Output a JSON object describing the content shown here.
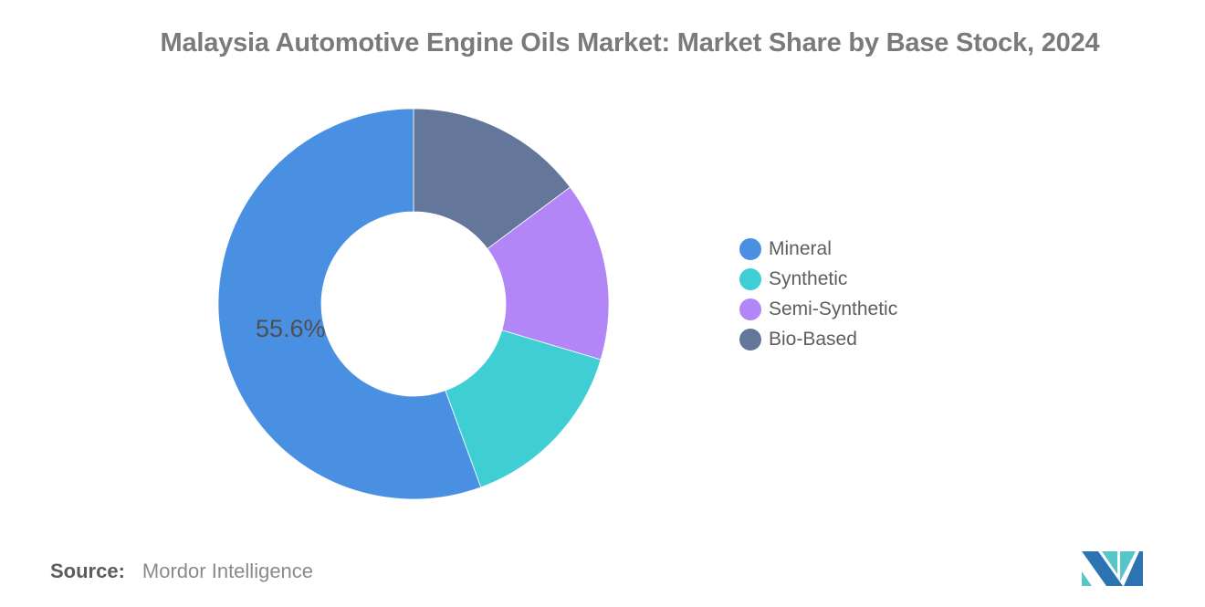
{
  "title": "Malaysia Automotive Engine Oils Market: Market Share by Base Stock, 2024",
  "chart_data": {
    "type": "pie",
    "subtype": "donut",
    "title": "Malaysia Automotive Engine Oils Market: Market Share by Base Stock, 2024",
    "legend_position": "right",
    "start_angle_deg": 0,
    "direction": "counterclockwise",
    "inner_radius_ratio": 0.47,
    "units": "%",
    "slices": [
      {
        "name": "Mineral",
        "value": 55.6,
        "label": "55.6%",
        "color": "#4A90E2"
      },
      {
        "name": "Synthetic",
        "value": 14.8,
        "label": "",
        "color": "#3ECED4"
      },
      {
        "name": "Semi-Synthetic",
        "value": 14.8,
        "label": "",
        "color": "#B286F7"
      },
      {
        "name": "Bio-Based",
        "value": 14.8,
        "label": "",
        "color": "#64779A"
      }
    ]
  },
  "source": {
    "label": "Source:",
    "value": "Mordor Intelligence"
  },
  "logo": {
    "name": "mordor-intelligence-logo",
    "colors": {
      "blue": "#2C73B2",
      "teal": "#56C6C9"
    }
  }
}
